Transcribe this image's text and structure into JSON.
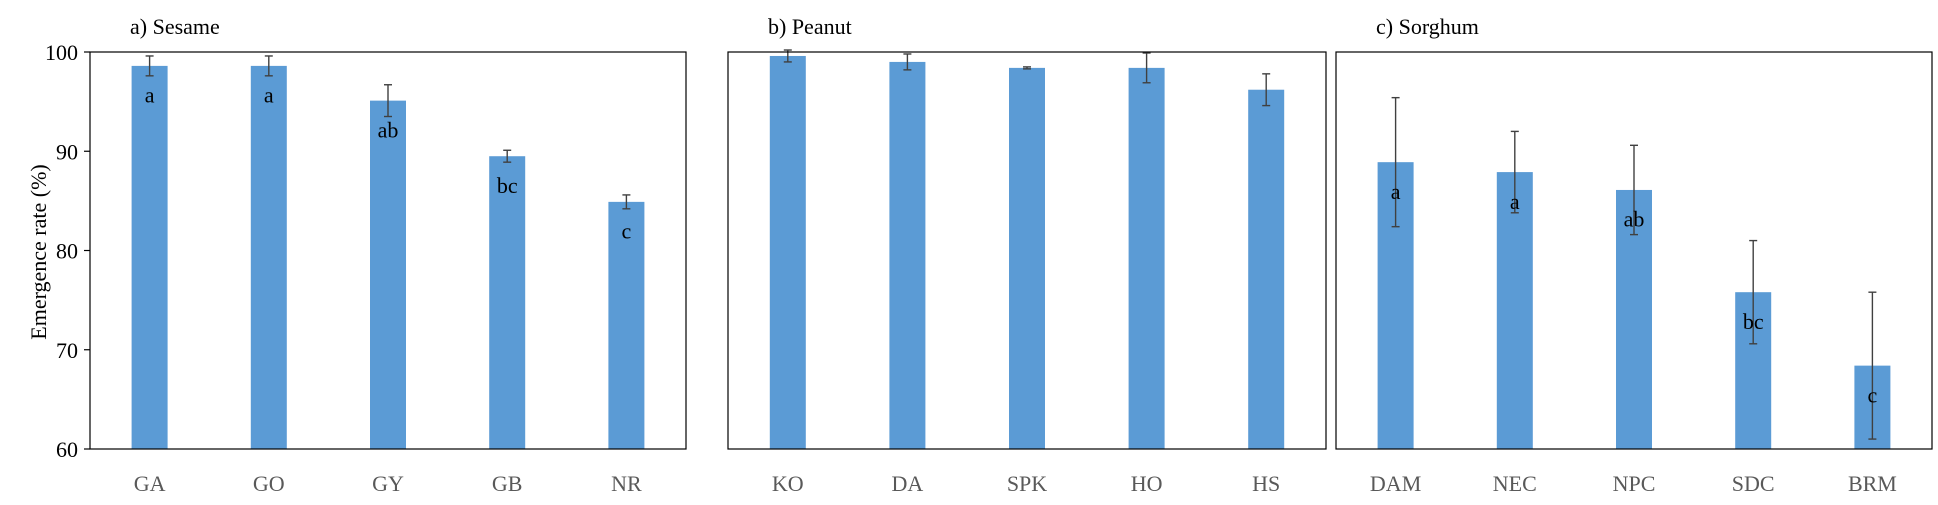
{
  "chart_data": [
    {
      "type": "bar",
      "title": "a) Sesame",
      "ylabel": "Emergence rate (%)",
      "ylim": [
        60,
        100
      ],
      "yticks": [
        60,
        70,
        80,
        90,
        100
      ],
      "categories": [
        "GA",
        "GO",
        "GY",
        "GB",
        "NR"
      ],
      "values": [
        98.6,
        98.6,
        95.1,
        89.5,
        84.9
      ],
      "errors": [
        1.0,
        1.0,
        1.6,
        0.6,
        0.7
      ],
      "labels": [
        "a",
        "a",
        "ab",
        "bc",
        "c"
      ],
      "color": "#5B9BD5"
    },
    {
      "type": "bar",
      "title": "b) Peanut",
      "ylim": [
        60,
        100
      ],
      "categories": [
        "KO",
        "DA",
        "SPK",
        "HO",
        "HS"
      ],
      "values": [
        99.6,
        99.0,
        98.4,
        98.4,
        96.2
      ],
      "errors": [
        0.6,
        0.8,
        0.1,
        1.5,
        1.6
      ],
      "labels": [
        "",
        "",
        "",
        "",
        ""
      ],
      "color": "#5B9BD5"
    },
    {
      "type": "bar",
      "title": "c) Sorghum",
      "ylim": [
        60,
        100
      ],
      "categories": [
        "DAM",
        "NEC",
        "NPC",
        "SDC",
        "BRM"
      ],
      "values": [
        88.9,
        87.9,
        86.1,
        75.8,
        68.4
      ],
      "errors": [
        6.5,
        4.1,
        4.5,
        5.2,
        7.4
      ],
      "labels": [
        "a",
        "a",
        "ab",
        "bc",
        "c"
      ],
      "color": "#5B9BD5"
    }
  ]
}
